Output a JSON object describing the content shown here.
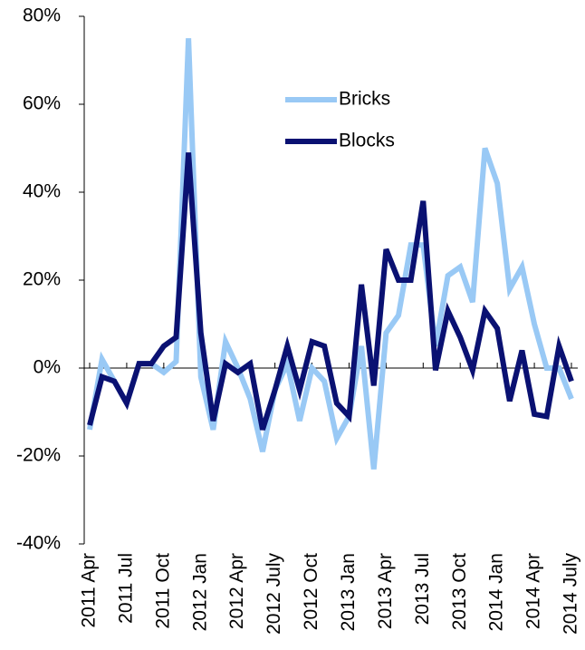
{
  "chart_data": {
    "type": "line",
    "categories": [
      "2011 Apr",
      null,
      null,
      "2011 Jul",
      null,
      null,
      "2011 Oct",
      null,
      null,
      "2012 Jan",
      null,
      null,
      "2012 Apr",
      null,
      null,
      "2012 July",
      null,
      null,
      "2012 Oct",
      null,
      null,
      "2013 Jan",
      null,
      null,
      "2013 Apr",
      null,
      null,
      "2013 Jul",
      null,
      null,
      "2013 Oct",
      null,
      null,
      "2014 Jan",
      null,
      null,
      "2014 Apr",
      null,
      null,
      "2014 July"
    ],
    "series": [
      {
        "name": "Bricks",
        "color": "#99c9f5",
        "values": [
          -14,
          2,
          -3,
          -8,
          1,
          1,
          -1,
          1.5,
          75,
          -2,
          -14,
          6,
          0,
          -7,
          -19,
          -5,
          1,
          -12,
          0,
          -3,
          -16,
          -11,
          5,
          -23,
          8,
          12,
          28,
          28,
          5,
          21,
          23,
          15,
          50,
          42,
          18,
          23,
          10,
          0,
          0,
          -7
        ]
      },
      {
        "name": "Blocks",
        "color": "#0a1172",
        "values": [
          -13,
          -2,
          -3,
          -8,
          1,
          1,
          5,
          7,
          49,
          8,
          -12,
          1,
          -1,
          1,
          -14,
          -5,
          5,
          -5,
          6,
          5,
          -8,
          -11,
          19,
          -4,
          27,
          20,
          20,
          38,
          -0.5,
          13,
          7,
          -0.5,
          13,
          9,
          -7.5,
          4,
          -10.5,
          -11,
          5,
          -3
        ]
      }
    ],
    "ylim": [
      -40,
      80
    ],
    "yticks": [
      {
        "value": -40,
        "label": "-40%"
      },
      {
        "value": -20,
        "label": "-20%"
      },
      {
        "value": 0,
        "label": "0%"
      },
      {
        "value": 20,
        "label": "20%"
      },
      {
        "value": 40,
        "label": "40%"
      },
      {
        "value": 60,
        "label": "60%"
      },
      {
        "value": 80,
        "label": "80%"
      }
    ],
    "legend": "top-center"
  }
}
